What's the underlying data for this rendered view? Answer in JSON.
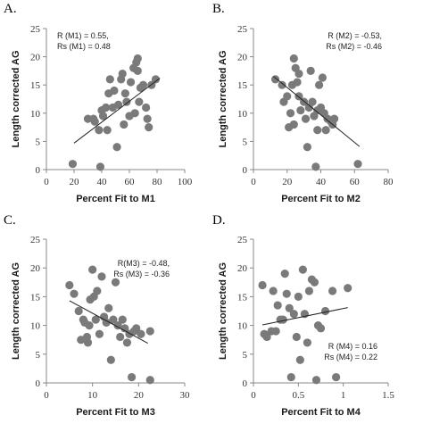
{
  "chart_data": [
    {
      "panel": "A.",
      "type": "scatter",
      "xlabel": "Percent Fit to M1",
      "ylabel": "Length corrected AG",
      "xlim": [
        0,
        100
      ],
      "ylim": [
        0,
        25
      ],
      "xticks": [
        0,
        20,
        40,
        60,
        80,
        100
      ],
      "yticks": [
        0,
        5,
        10,
        15,
        20,
        25
      ],
      "annotations": [
        "R (M1) = 0.55,",
        "Rs (M1) = 0.48"
      ],
      "annotation_position": "top-left",
      "trendline": {
        "x": [
          20,
          82
        ],
        "y": [
          4.7,
          16.2
        ]
      },
      "points": [
        {
          "x": 19,
          "y": 1
        },
        {
          "x": 30,
          "y": 9
        },
        {
          "x": 34,
          "y": 9
        },
        {
          "x": 35,
          "y": 8.5
        },
        {
          "x": 38,
          "y": 7
        },
        {
          "x": 39,
          "y": 0.5
        },
        {
          "x": 40,
          "y": 10.5
        },
        {
          "x": 41,
          "y": 9.5
        },
        {
          "x": 43,
          "y": 11
        },
        {
          "x": 44,
          "y": 7
        },
        {
          "x": 45,
          "y": 13.5
        },
        {
          "x": 46,
          "y": 16
        },
        {
          "x": 48,
          "y": 11
        },
        {
          "x": 49,
          "y": 14
        },
        {
          "x": 51,
          "y": 4
        },
        {
          "x": 52,
          "y": 11.5
        },
        {
          "x": 54,
          "y": 16
        },
        {
          "x": 55,
          "y": 17
        },
        {
          "x": 56,
          "y": 8
        },
        {
          "x": 57,
          "y": 13.5
        },
        {
          "x": 58,
          "y": 12
        },
        {
          "x": 60,
          "y": 9.5
        },
        {
          "x": 61,
          "y": 15.5
        },
        {
          "x": 63,
          "y": 18
        },
        {
          "x": 64,
          "y": 10
        },
        {
          "x": 65,
          "y": 19
        },
        {
          "x": 66,
          "y": 17.5
        },
        {
          "x": 67,
          "y": 12
        },
        {
          "x": 68,
          "y": 14.5
        },
        {
          "x": 70,
          "y": 15
        },
        {
          "x": 72,
          "y": 11
        },
        {
          "x": 73,
          "y": 9
        },
        {
          "x": 74,
          "y": 7.5
        },
        {
          "x": 76,
          "y": 15
        },
        {
          "x": 79,
          "y": 16
        },
        {
          "x": 66,
          "y": 19.7
        }
      ]
    },
    {
      "panel": "B.",
      "type": "scatter",
      "xlabel": "Percent Fit to M2",
      "ylabel": "Length corrected AG",
      "xlim": [
        0,
        80
      ],
      "ylim": [
        0,
        25
      ],
      "xticks": [
        0,
        20,
        40,
        60,
        80
      ],
      "yticks": [
        0,
        5,
        10,
        15,
        20,
        25
      ],
      "annotations": [
        "R (M2) = -0.53,",
        "Rs (M2) = -0.46"
      ],
      "annotation_position": "top-right",
      "trendline": {
        "x": [
          12,
          63
        ],
        "y": [
          16.5,
          4.1
        ]
      },
      "points": [
        {
          "x": 13,
          "y": 16
        },
        {
          "x": 17,
          "y": 15
        },
        {
          "x": 18,
          "y": 12
        },
        {
          "x": 20,
          "y": 13
        },
        {
          "x": 21,
          "y": 7.5
        },
        {
          "x": 22,
          "y": 10
        },
        {
          "x": 23,
          "y": 15
        },
        {
          "x": 24,
          "y": 19.7
        },
        {
          "x": 24,
          "y": 8
        },
        {
          "x": 25,
          "y": 18
        },
        {
          "x": 26,
          "y": 15.5
        },
        {
          "x": 27,
          "y": 17
        },
        {
          "x": 27,
          "y": 13
        },
        {
          "x": 28,
          "y": 10.5
        },
        {
          "x": 30,
          "y": 12
        },
        {
          "x": 31,
          "y": 9
        },
        {
          "x": 32,
          "y": 4
        },
        {
          "x": 33,
          "y": 11
        },
        {
          "x": 34,
          "y": 17.5
        },
        {
          "x": 35,
          "y": 12
        },
        {
          "x": 36,
          "y": 9.5
        },
        {
          "x": 37,
          "y": 0.5
        },
        {
          "x": 38,
          "y": 10.5
        },
        {
          "x": 38,
          "y": 7
        },
        {
          "x": 39,
          "y": 15
        },
        {
          "x": 40,
          "y": 11
        },
        {
          "x": 42,
          "y": 10
        },
        {
          "x": 43,
          "y": 7
        },
        {
          "x": 44,
          "y": 9
        },
        {
          "x": 46,
          "y": 8.5
        },
        {
          "x": 47,
          "y": 8
        },
        {
          "x": 48,
          "y": 9
        },
        {
          "x": 62,
          "y": 1
        },
        {
          "x": 41,
          "y": 16.3
        }
      ]
    },
    {
      "panel": "C.",
      "type": "scatter",
      "xlabel": "Percent Fit to M3",
      "ylabel": "Length corrected AG",
      "xlim": [
        0,
        30
      ],
      "ylim": [
        0,
        25
      ],
      "xticks": [
        0,
        10,
        20,
        30
      ],
      "yticks": [
        0,
        5,
        10,
        15,
        20,
        25
      ],
      "annotations": [
        "R(M3) = -0.48,",
        "Rs (M3) = -0.36"
      ],
      "annotation_position": "top-right",
      "trendline": {
        "x": [
          5,
          22
        ],
        "y": [
          14.3,
          6.9
        ]
      },
      "points": [
        {
          "x": 5,
          "y": 17
        },
        {
          "x": 6,
          "y": 15.5
        },
        {
          "x": 7,
          "y": 12.5
        },
        {
          "x": 7.5,
          "y": 7.5
        },
        {
          "x": 8,
          "y": 11
        },
        {
          "x": 8.3,
          "y": 10.5
        },
        {
          "x": 8.8,
          "y": 8
        },
        {
          "x": 9,
          "y": 7
        },
        {
          "x": 9.3,
          "y": 10
        },
        {
          "x": 9.5,
          "y": 14.5
        },
        {
          "x": 10,
          "y": 19.7
        },
        {
          "x": 10.3,
          "y": 15
        },
        {
          "x": 10.7,
          "y": 11
        },
        {
          "x": 11,
          "y": 16
        },
        {
          "x": 11.5,
          "y": 8.5
        },
        {
          "x": 12,
          "y": 18.5
        },
        {
          "x": 12.5,
          "y": 11.5
        },
        {
          "x": 13,
          "y": 10.5
        },
        {
          "x": 13.5,
          "y": 13
        },
        {
          "x": 14,
          "y": 4
        },
        {
          "x": 14.5,
          "y": 11
        },
        {
          "x": 15,
          "y": 17.5
        },
        {
          "x": 15.5,
          "y": 10
        },
        {
          "x": 16,
          "y": 8
        },
        {
          "x": 16.5,
          "y": 11
        },
        {
          "x": 17,
          "y": 9.5
        },
        {
          "x": 17.5,
          "y": 7
        },
        {
          "x": 18,
          "y": 8.5
        },
        {
          "x": 18.5,
          "y": 1
        },
        {
          "x": 19,
          "y": 9
        },
        {
          "x": 19.5,
          "y": 9.5
        },
        {
          "x": 20.5,
          "y": 8.5
        },
        {
          "x": 22.5,
          "y": 0.5
        },
        {
          "x": 22.5,
          "y": 9
        }
      ]
    },
    {
      "panel": "D.",
      "type": "scatter",
      "xlabel": "Percent Fit to M4",
      "ylabel": "Length corrected AG",
      "xlim": [
        0,
        1.5
      ],
      "ylim": [
        0,
        25
      ],
      "xticks": [
        0,
        0.5,
        1,
        1.5
      ],
      "yticks": [
        0,
        5,
        10,
        15,
        20,
        25
      ],
      "annotations": [
        "R (M4) = 0.16",
        "Rs (M4) = 0.22"
      ],
      "annotation_position": "bottom-right",
      "trendline": {
        "x": [
          0.1,
          1.05
        ],
        "y": [
          10.1,
          13.1
        ]
      },
      "points": [
        {
          "x": 0.1,
          "y": 17
        },
        {
          "x": 0.12,
          "y": 8.5
        },
        {
          "x": 0.15,
          "y": 8
        },
        {
          "x": 0.2,
          "y": 9
        },
        {
          "x": 0.22,
          "y": 16
        },
        {
          "x": 0.25,
          "y": 9
        },
        {
          "x": 0.27,
          "y": 13.5
        },
        {
          "x": 0.3,
          "y": 11
        },
        {
          "x": 0.33,
          "y": 11
        },
        {
          "x": 0.37,
          "y": 15.5
        },
        {
          "x": 0.4,
          "y": 13
        },
        {
          "x": 0.42,
          "y": 1
        },
        {
          "x": 0.45,
          "y": 12
        },
        {
          "x": 0.48,
          "y": 8
        },
        {
          "x": 0.5,
          "y": 15
        },
        {
          "x": 0.52,
          "y": 4
        },
        {
          "x": 0.55,
          "y": 19.7
        },
        {
          "x": 0.57,
          "y": 12
        },
        {
          "x": 0.6,
          "y": 7
        },
        {
          "x": 0.62,
          "y": 16
        },
        {
          "x": 0.65,
          "y": 18
        },
        {
          "x": 0.68,
          "y": 17.5
        },
        {
          "x": 0.7,
          "y": 0.5
        },
        {
          "x": 0.72,
          "y": 10
        },
        {
          "x": 0.75,
          "y": 9.5
        },
        {
          "x": 0.8,
          "y": 12.5
        },
        {
          "x": 0.88,
          "y": 16
        },
        {
          "x": 0.92,
          "y": 1
        },
        {
          "x": 1.05,
          "y": 16.5
        },
        {
          "x": 0.35,
          "y": 19
        }
      ]
    }
  ]
}
